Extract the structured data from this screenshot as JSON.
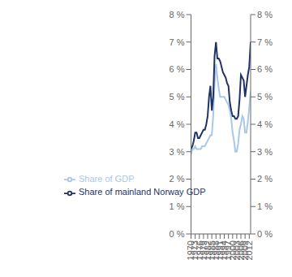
{
  "chart_data": {
    "type": "line",
    "x": [
      1970,
      1971,
      1972,
      1973,
      1974,
      1975,
      1976,
      1977,
      1978,
      1979,
      1980,
      1981,
      1982,
      1983,
      1984,
      1985,
      1986,
      1987,
      1988,
      1989,
      1990,
      1991,
      1992,
      1993,
      1994,
      1995,
      1996,
      1997,
      1998,
      1999,
      2000,
      2001,
      2002,
      2003,
      2004,
      2005,
      2006,
      2007,
      2008,
      2009,
      2010,
      2011,
      2012,
      2013
    ],
    "series": [
      {
        "name": "Share of GDP",
        "color": "#a8c8e8",
        "values": [
          2.9,
          3.1,
          3.1,
          3.2,
          3.1,
          3.1,
          3.1,
          3.1,
          3.2,
          3.2,
          3.2,
          3.3,
          3.4,
          3.5,
          3.6,
          3.6,
          4.3,
          5.5,
          6.2,
          5.7,
          5.3,
          5.0,
          5.0,
          5.0,
          5.0,
          4.9,
          4.8,
          4.7,
          4.5,
          4.2,
          3.7,
          3.4,
          3.0,
          3.0,
          3.3,
          3.8,
          4.0,
          4.3,
          4.2,
          3.7,
          3.7,
          4.1,
          4.6,
          5.2
        ]
      },
      {
        "name": "Share of mainland Norway GDP",
        "color": "#1e3264",
        "values": [
          3.1,
          3.2,
          3.4,
          3.7,
          3.7,
          3.5,
          3.5,
          3.6,
          3.7,
          3.8,
          3.8,
          4.0,
          4.3,
          5.0,
          5.4,
          4.5,
          5.0,
          6.5,
          7.0,
          6.4,
          6.4,
          6.3,
          6.1,
          5.9,
          5.8,
          5.7,
          5.5,
          5.4,
          4.8,
          4.5,
          4.3,
          4.3,
          4.2,
          4.2,
          4.3,
          4.9,
          5.8,
          5.7,
          5.6,
          5.0,
          5.4,
          5.8,
          6.1,
          7.0
        ]
      }
    ],
    "xlim": [
      1970,
      2013
    ],
    "xticks": [
      1970,
      1973,
      1976,
      1979,
      1982,
      1985,
      1988,
      1991,
      1994,
      1997,
      2000,
      2003,
      2006,
      2009,
      2012
    ],
    "ylim": [
      0,
      8
    ],
    "yticks": [
      {
        "value": 0,
        "label": "0 %"
      },
      {
        "value": 1,
        "label": "1 %"
      },
      {
        "value": 2,
        "label": "2 %"
      },
      {
        "value": 3,
        "label": "3 %"
      },
      {
        "value": 4,
        "label": "4 %"
      },
      {
        "value": 5,
        "label": "5 %"
      },
      {
        "value": 6,
        "label": "6 %"
      },
      {
        "value": 7,
        "label": "7 %"
      },
      {
        "value": 8,
        "label": "8 %"
      }
    ],
    "y2lim": [
      0,
      8
    ],
    "y2ticks": [
      {
        "value": 0,
        "label": "0 %"
      },
      {
        "value": 1,
        "label": "1 %"
      },
      {
        "value": 2,
        "label": "2 %"
      },
      {
        "value": 3,
        "label": "3 %"
      },
      {
        "value": 4,
        "label": "4 %"
      },
      {
        "value": 5,
        "label": "5 %"
      },
      {
        "value": 6,
        "label": "6 %"
      },
      {
        "value": 7,
        "label": "7 %"
      },
      {
        "value": 8,
        "label": "8 %"
      }
    ],
    "grid": false,
    "legend": "lower left"
  }
}
